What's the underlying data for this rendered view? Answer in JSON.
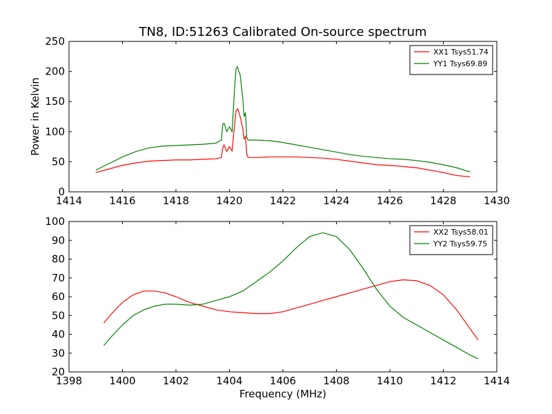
{
  "chart_data": [
    {
      "type": "line",
      "title": "TN8, ID:51263 Calibrated On-source spectrum",
      "xlabel": "",
      "ylabel": "Power in Kelvin",
      "xlim": [
        1414,
        1430
      ],
      "ylim": [
        0,
        250
      ],
      "xticks": [
        "1414",
        "1416",
        "1418",
        "1420",
        "1422",
        "1424",
        "1426",
        "1428",
        "1430"
      ],
      "yticks": [
        "0",
        "50",
        "100",
        "150",
        "200",
        "250"
      ],
      "legend_position": "top-right",
      "series": [
        {
          "name": "XX1 Tsys51.74",
          "color": "#ff0000",
          "x": [
            1415.0,
            1415.5,
            1416.0,
            1416.5,
            1417.0,
            1417.5,
            1418.0,
            1418.5,
            1419.0,
            1419.5,
            1419.7,
            1419.75,
            1419.8,
            1419.9,
            1420.0,
            1420.1,
            1420.2,
            1420.25,
            1420.3,
            1420.35,
            1420.4,
            1420.5,
            1420.55,
            1420.6,
            1420.65,
            1420.7,
            1420.8,
            1421.0,
            1421.5,
            1422.0,
            1422.5,
            1423.0,
            1423.5,
            1424.0,
            1424.5,
            1425.0,
            1425.5,
            1426.0,
            1426.5,
            1427.0,
            1427.5,
            1428.0,
            1428.5,
            1429.0
          ],
          "y": [
            32,
            38,
            44,
            48,
            51,
            52,
            53,
            53,
            54,
            55,
            57,
            73,
            78,
            67,
            75,
            68,
            115,
            135,
            138,
            133,
            125,
            105,
            88,
            92,
            62,
            57,
            57,
            57,
            58,
            58,
            58,
            57,
            56,
            54,
            51,
            48,
            45,
            44,
            42,
            40,
            36,
            32,
            27,
            25
          ]
        },
        {
          "name": "YY1 Tsys69.89",
          "color": "#008000",
          "x": [
            1415.0,
            1415.5,
            1416.0,
            1416.5,
            1417.0,
            1417.5,
            1418.0,
            1418.5,
            1419.0,
            1419.5,
            1419.7,
            1419.75,
            1419.8,
            1419.9,
            1420.0,
            1420.1,
            1420.2,
            1420.25,
            1420.3,
            1420.35,
            1420.4,
            1420.5,
            1420.55,
            1420.6,
            1420.65,
            1420.7,
            1420.8,
            1421.0,
            1421.5,
            1422.0,
            1422.5,
            1423.0,
            1423.5,
            1424.0,
            1424.5,
            1425.0,
            1425.5,
            1426.0,
            1426.5,
            1427.0,
            1427.5,
            1428.0,
            1428.5,
            1429.0
          ],
          "y": [
            36,
            47,
            58,
            67,
            73,
            76,
            77,
            78,
            79,
            81,
            86,
            112,
            114,
            100,
            108,
            100,
            178,
            205,
            208,
            200,
            195,
            155,
            125,
            132,
            90,
            86,
            86,
            86,
            85,
            82,
            78,
            74,
            70,
            66,
            62,
            59,
            57,
            55,
            54,
            52,
            49,
            45,
            40,
            33
          ]
        }
      ]
    },
    {
      "type": "line",
      "title": "",
      "xlabel": "Frequency (MHz)",
      "ylabel": "",
      "xlim": [
        1398,
        1414
      ],
      "ylim": [
        20,
        100
      ],
      "xticks": [
        "1398",
        "1400",
        "1402",
        "1404",
        "1406",
        "1408",
        "1410",
        "1412",
        "1414"
      ],
      "yticks": [
        "20",
        "30",
        "40",
        "50",
        "60",
        "70",
        "80",
        "90",
        "100"
      ],
      "legend_position": "top-right",
      "series": [
        {
          "name": "XX2 Tsys58.01",
          "color": "#ff0000",
          "x": [
            1399.3,
            1399.6,
            1400.0,
            1400.4,
            1400.8,
            1401.2,
            1401.6,
            1402.0,
            1402.5,
            1403.0,
            1403.5,
            1404.0,
            1404.5,
            1405.0,
            1405.5,
            1406.0,
            1406.5,
            1407.0,
            1407.5,
            1408.0,
            1408.5,
            1409.0,
            1409.5,
            1410.0,
            1410.5,
            1411.0,
            1411.5,
            1412.0,
            1412.5,
            1413.0,
            1413.3
          ],
          "y": [
            46,
            51,
            57,
            61,
            63,
            63,
            62,
            60,
            57,
            55,
            53,
            52,
            51.5,
            51,
            51,
            52,
            54,
            56,
            58,
            60,
            62,
            64,
            66,
            68,
            69,
            68.5,
            66,
            61,
            53,
            43,
            37
          ]
        },
        {
          "name": "YY2 Tsys59.75",
          "color": "#008000",
          "x": [
            1399.3,
            1399.6,
            1400.0,
            1400.4,
            1400.8,
            1401.2,
            1401.6,
            1402.0,
            1402.5,
            1403.0,
            1403.5,
            1404.0,
            1404.5,
            1405.0,
            1405.5,
            1406.0,
            1406.5,
            1407.0,
            1407.5,
            1408.0,
            1408.5,
            1409.0,
            1409.5,
            1410.0,
            1410.5,
            1411.0,
            1411.5,
            1412.0,
            1412.5,
            1413.0,
            1413.3
          ],
          "y": [
            34,
            39,
            45,
            50,
            53,
            55,
            56,
            56,
            55.5,
            56,
            58,
            60,
            63,
            68,
            73,
            79,
            86,
            92,
            94,
            92,
            85,
            75,
            64,
            55,
            49,
            45,
            41,
            37,
            33,
            29,
            27
          ]
        }
      ]
    }
  ]
}
